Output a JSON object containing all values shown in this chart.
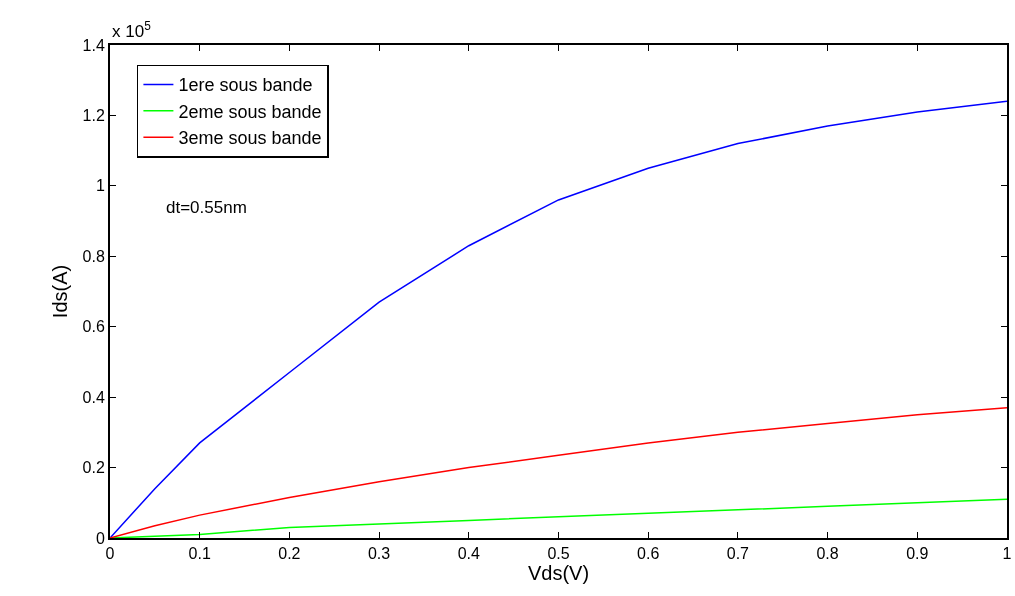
{
  "chart_data": {
    "type": "line",
    "xlabel": "Vds(V)",
    "ylabel": "Ids(A)",
    "x": [
      0,
      0.05,
      0.1,
      0.2,
      0.3,
      0.4,
      0.5,
      0.6,
      0.7,
      0.8,
      0.9,
      1.0
    ],
    "series": [
      {
        "name": "1ere sous bande",
        "color": "#0000ff",
        "values": [
          0,
          0.14,
          0.27,
          0.47,
          0.67,
          0.83,
          0.96,
          1.05,
          1.12,
          1.17,
          1.21,
          1.24
        ]
      },
      {
        "name": "2eme sous bande",
        "color": "#00ff00",
        "values": [
          0,
          0.005,
          0.01,
          0.03,
          0.04,
          0.05,
          0.06,
          0.07,
          0.08,
          0.09,
          0.1,
          0.11
        ]
      },
      {
        "name": "3eme sous bande",
        "color": "#ff0000",
        "values": [
          0,
          0.035,
          0.065,
          0.115,
          0.16,
          0.2,
          0.235,
          0.27,
          0.3,
          0.325,
          0.35,
          0.37
        ]
      }
    ],
    "xlim": [
      0,
      1
    ],
    "xticks": [
      0,
      0.1,
      0.2,
      0.3,
      0.4,
      0.5,
      0.6,
      0.7,
      0.8,
      0.9,
      1
    ],
    "ylim": [
      0,
      1.4
    ],
    "yticks": [
      0,
      0.2,
      0.4,
      0.6,
      0.8,
      1,
      1.2,
      1.4
    ],
    "annotations": [
      "x 10$^{5}$",
      "dt=0.55nm"
    ],
    "grid": false,
    "legend": "top left",
    "marker": "none",
    "line_style": "solid"
  }
}
